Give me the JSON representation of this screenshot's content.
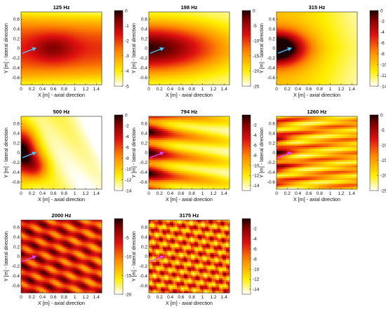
{
  "chart_data": [
    {
      "type": "heatmap",
      "title": "125 Hz",
      "xlabel": "X [m] - axial direction",
      "ylabel": "Y [m] - lateral direction",
      "xlim": [
        0,
        1.5
      ],
      "ylim": [
        -0.75,
        0.75
      ],
      "xticks": [
        "0",
        "0.2",
        "0.4",
        "0.6",
        "0.8",
        "1",
        "1.2",
        "1.4"
      ],
      "yticks": [
        "-0.6",
        "-0.4",
        "-0.2",
        "0",
        "0.2",
        "0.4",
        "0.6"
      ],
      "colorbar": {
        "min": -5,
        "max": 0,
        "ticks": [
          "0",
          "-1",
          "-2",
          "-3",
          "-4",
          "-5"
        ],
        "unit": "dB"
      },
      "arrow_color": "#4fc3f7"
    },
    {
      "type": "heatmap",
      "title": "198 Hz",
      "xlabel": "X [m] - axial direction",
      "ylabel": "Y [m] - lateral direction",
      "xlim": [
        0,
        1.5
      ],
      "ylim": [
        -0.75,
        0.75
      ],
      "xticks": [
        "0",
        "0.2",
        "0.4",
        "0.6",
        "0.8",
        "1",
        "1.2",
        "1.4"
      ],
      "yticks": [
        "-0.6",
        "-0.4",
        "-0.2",
        "0",
        "0.2",
        "0.4",
        "0.6"
      ],
      "colorbar": {
        "min": -25,
        "max": 0,
        "ticks": [
          "0",
          "-5",
          "-10",
          "-15",
          "-20",
          "-25"
        ],
        "unit": "dB"
      },
      "arrow_color": "#4fc3f7"
    },
    {
      "type": "heatmap",
      "title": "315 Hz",
      "xlabel": "X [m] - axial direction",
      "ylabel": "Y [m] - lateral direction",
      "xlim": [
        0,
        1.5
      ],
      "ylim": [
        -0.75,
        0.75
      ],
      "xticks": [
        "0",
        "0.2",
        "0.4",
        "0.6",
        "0.8",
        "1",
        "1.2",
        "1.4"
      ],
      "yticks": [
        "-0.6",
        "-0.4",
        "-0.2",
        "0",
        "0.2",
        "0.4",
        "0.6"
      ],
      "colorbar": {
        "min": -14,
        "max": 0,
        "ticks": [
          "0",
          "-2",
          "-4",
          "-6",
          "-8",
          "-10",
          "-12",
          "-14"
        ],
        "unit": "dB"
      },
      "arrow_color": "#4fc3f7"
    },
    {
      "type": "heatmap",
      "title": "500 Hz",
      "xlabel": "X [m] - axial direction",
      "ylabel": "Y [m] - lateral direction",
      "xlim": [
        0,
        1.5
      ],
      "ylim": [
        -0.75,
        0.75
      ],
      "xticks": [
        "0",
        "0.2",
        "0.4",
        "0.6",
        "0.8",
        "1",
        "1.2",
        "1.4"
      ],
      "yticks": [
        "-0.6",
        "-0.4",
        "-0.2",
        "0",
        "0.2",
        "0.4",
        "0.6"
      ],
      "colorbar": {
        "min": -14,
        "max": 0,
        "ticks": [
          "0",
          "-2",
          "-4",
          "-6",
          "-8",
          "-10",
          "-12",
          "-14"
        ],
        "unit": "dB"
      },
      "arrow_color": "#4fc3f7"
    },
    {
      "type": "heatmap",
      "title": "794 Hz",
      "xlabel": "X [m] - axial direction",
      "ylabel": "Y [m] - lateral direction",
      "xlim": [
        0,
        1.5
      ],
      "ylim": [
        -0.75,
        0.75
      ],
      "xticks": [
        "0",
        "0.2",
        "0.4",
        "0.6",
        "0.8",
        "1",
        "1.2",
        "1.4"
      ],
      "yticks": [
        "-0.6",
        "-0.4",
        "-0.2",
        "0",
        "0.2",
        "0.4",
        "0.6"
      ],
      "colorbar": {
        "min": -15,
        "max": 0,
        "ticks": [
          "-2",
          "-4",
          "-6",
          "-8",
          "-10",
          "-12",
          "-14"
        ],
        "unit": "dB"
      },
      "arrow_color": "#e040fb"
    },
    {
      "type": "heatmap",
      "title": "1260 Hz",
      "xlabel": "X [m] - axial direction",
      "ylabel": "Y [m] - lateral direction",
      "xlim": [
        0,
        1.5
      ],
      "ylim": [
        -0.75,
        0.75
      ],
      "xticks": [
        "0",
        "0.2",
        "0.4",
        "0.6",
        "0.8",
        "1",
        "1.2",
        "1.4"
      ],
      "yticks": [
        "-0.6",
        "-0.4",
        "-0.2",
        "0",
        "0.2",
        "0.4",
        "0.6"
      ],
      "colorbar": {
        "min": -25,
        "max": 0,
        "ticks": [
          "0",
          "-5",
          "-10",
          "-15",
          "-20",
          "-25"
        ],
        "unit": "dB"
      },
      "arrow_color": "#e040fb"
    },
    {
      "type": "heatmap",
      "title": "2000 Hz",
      "xlabel": "X [m] - axial direction",
      "ylabel": "Y [m] - lateral direction",
      "xlim": [
        0,
        1.5
      ],
      "ylim": [
        -0.75,
        0.75
      ],
      "xticks": [
        "0",
        "0.2",
        "0.4",
        "0.6",
        "0.8",
        "1",
        "1.2",
        "1.4"
      ],
      "yticks": [
        "-0.6",
        "-0.4",
        "-0.2",
        "0",
        "0.2",
        "0.4",
        "0.6"
      ],
      "colorbar": {
        "min": -20,
        "max": 0,
        "ticks": [
          "-5",
          "-10",
          "-15",
          "-20"
        ],
        "unit": "dB"
      },
      "arrow_color": "#e040fb"
    },
    {
      "type": "heatmap",
      "title": "3175 Hz",
      "xlabel": "X [m] - axial direction",
      "ylabel": "Y [m] - lateral direction",
      "xlim": [
        0,
        1.5
      ],
      "ylim": [
        -0.75,
        0.75
      ],
      "xticks": [
        "0",
        "0.2",
        "0.4",
        "0.6",
        "0.8",
        "1",
        "1.2",
        "1.4"
      ],
      "yticks": [
        "-0.6",
        "-0.4",
        "-0.2",
        "0",
        "0.2",
        "0.4",
        "0.6"
      ],
      "colorbar": {
        "min": -15,
        "max": 0,
        "ticks": [
          "-2",
          "-4",
          "-6",
          "-8",
          "-10",
          "-12",
          "-14"
        ],
        "unit": "dB"
      },
      "arrow_color": "#e040fb"
    }
  ]
}
